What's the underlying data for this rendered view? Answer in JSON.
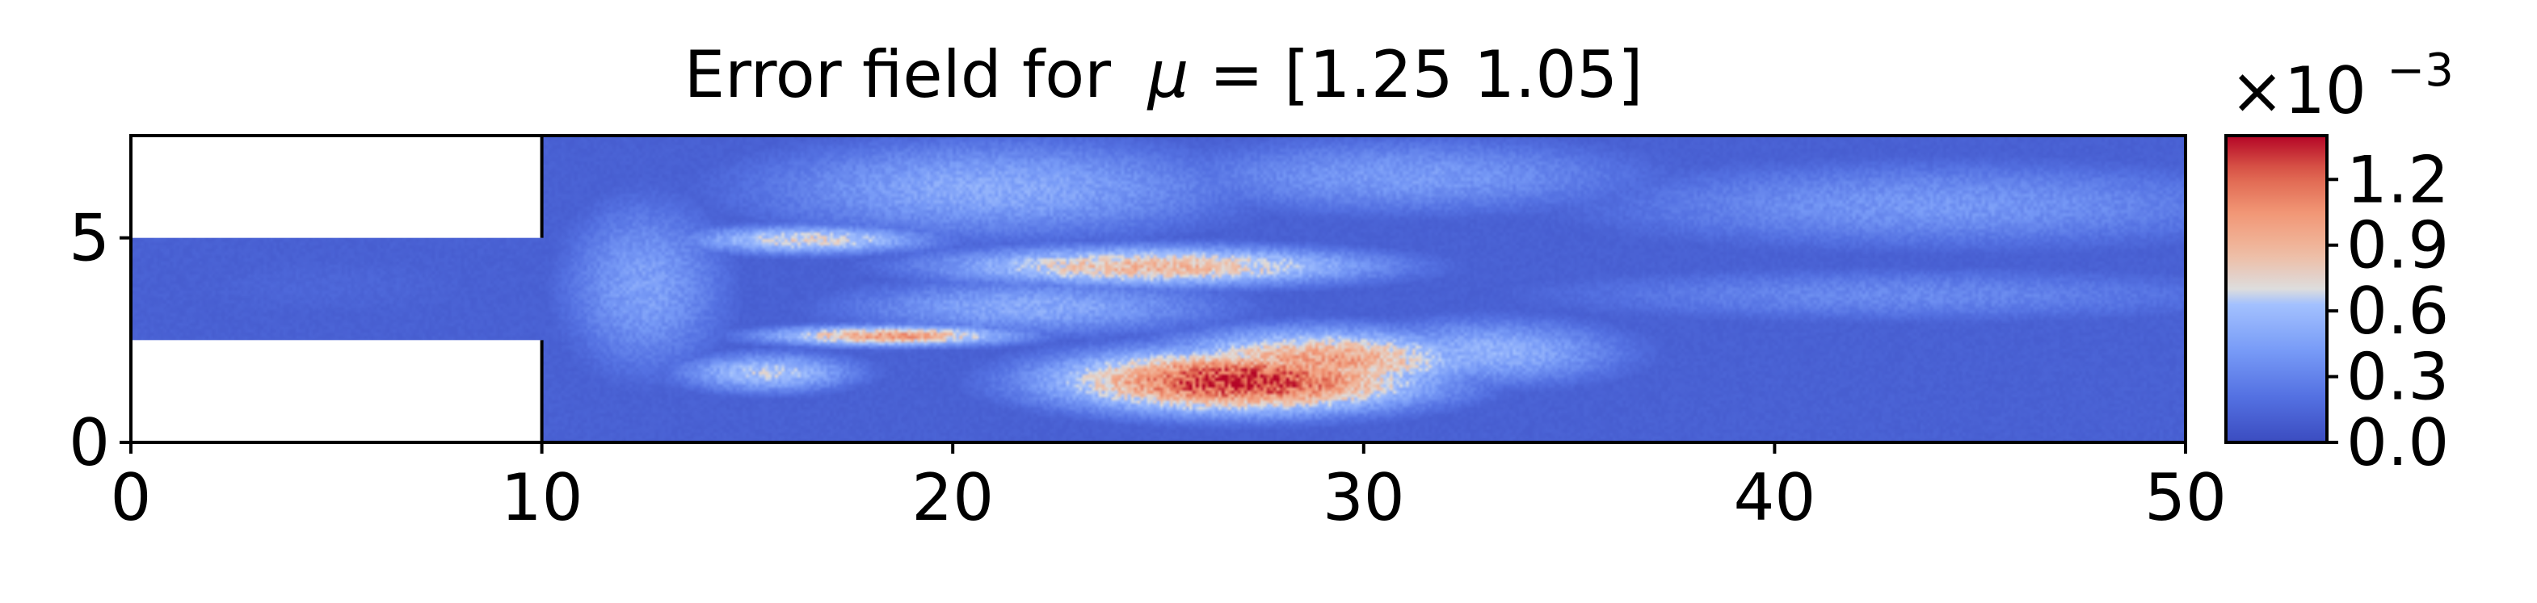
{
  "chart_data": {
    "type": "heatmap",
    "title_prefix": "Error field for",
    "title_symbol": "μ",
    "title_suffix": " = [1.25 1.05]",
    "x_ticks": [
      0,
      10,
      20,
      30,
      40,
      50
    ],
    "y_ticks": [
      0,
      5
    ],
    "xlim": [
      0,
      50
    ],
    "ylim": [
      0,
      7.5
    ],
    "domain": {
      "inlet_x": [
        0,
        10
      ],
      "inlet_y": [
        2.5,
        5
      ],
      "main_x": [
        10,
        50
      ],
      "main_y": [
        0,
        7.5
      ]
    },
    "colormap": "coolwarm",
    "colorbar": {
      "multiplier_base": "×10",
      "multiplier_exponent": "−3",
      "ticks": [
        "0.0",
        "0.3",
        "0.6",
        "0.9",
        "1.2"
      ],
      "tick_values": [
        0.0,
        0.3,
        0.6,
        0.9,
        1.2
      ],
      "range": [
        0.0,
        1.4
      ]
    },
    "hotspots": [
      {
        "x": 27,
        "y": 1.5,
        "value": 1.35,
        "sx": 3.2,
        "sy": 0.55
      },
      {
        "x": 29,
        "y": 2.0,
        "value": 1.0,
        "sx": 2.8,
        "sy": 0.55
      },
      {
        "x": 25,
        "y": 4.3,
        "value": 0.9,
        "sx": 3.8,
        "sy": 0.35
      },
      {
        "x": 18.5,
        "y": 2.6,
        "value": 1.0,
        "sx": 2.2,
        "sy": 0.18
      },
      {
        "x": 16.5,
        "y": 4.95,
        "value": 0.75,
        "sx": 2.2,
        "sy": 0.25
      },
      {
        "x": 15.5,
        "y": 1.7,
        "value": 0.65,
        "sx": 1.6,
        "sy": 0.35
      },
      {
        "x": 33,
        "y": 2.2,
        "value": 0.55,
        "sx": 2.5,
        "sy": 0.6
      },
      {
        "x": 12.5,
        "y": 3.8,
        "value": 0.45,
        "sx": 1.5,
        "sy": 1.6
      },
      {
        "x": 21,
        "y": 6.2,
        "value": 0.5,
        "sx": 4.5,
        "sy": 0.9
      },
      {
        "x": 22,
        "y": 3.3,
        "value": 0.5,
        "sx": 3.5,
        "sy": 0.5
      },
      {
        "x": 31,
        "y": 6.5,
        "value": 0.42,
        "sx": 4.5,
        "sy": 0.7
      },
      {
        "x": 44,
        "y": 5.8,
        "value": 0.4,
        "sx": 6.5,
        "sy": 0.8
      },
      {
        "x": 43,
        "y": 3.6,
        "value": 0.33,
        "sx": 7,
        "sy": 0.5
      },
      {
        "x": 5,
        "y": 3.8,
        "value": 0.15,
        "sx": 5,
        "sy": 1.0
      }
    ],
    "baseline_value": 0.12
  }
}
